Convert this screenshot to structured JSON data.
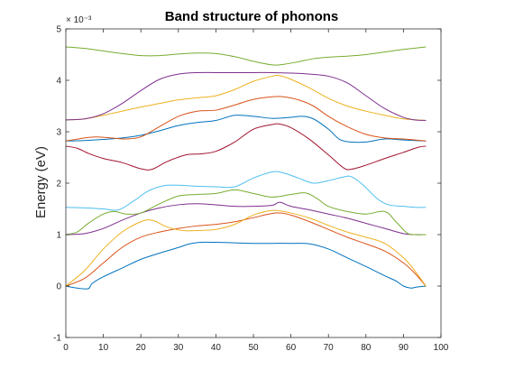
{
  "chart_data": {
    "type": "line",
    "title": "Band structure of phonons",
    "xlabel": "",
    "ylabel": "Energy (eV)",
    "y_multiplier_label": "× 10⁻³",
    "y_multiplier": 0.001,
    "xlim": [
      0,
      100
    ],
    "ylim": [
      -1,
      5
    ],
    "xticks": [
      0,
      10,
      20,
      30,
      40,
      50,
      60,
      70,
      80,
      90,
      100
    ],
    "yticks": [
      -1,
      0,
      1,
      2,
      3,
      4,
      5
    ],
    "grid": false,
    "legend": "none",
    "series": [
      {
        "color": "#0072BD",
        "points": [
          [
            0,
            0.0
          ],
          [
            3,
            -0.04
          ],
          [
            6,
            -0.05
          ],
          [
            7,
            0.05
          ],
          [
            10,
            0.18
          ],
          [
            15,
            0.35
          ],
          [
            20,
            0.52
          ],
          [
            25,
            0.64
          ],
          [
            30,
            0.75
          ],
          [
            33,
            0.82
          ],
          [
            36,
            0.85
          ],
          [
            40,
            0.85
          ],
          [
            45,
            0.84
          ],
          [
            50,
            0.83
          ],
          [
            55,
            0.83
          ],
          [
            60,
            0.83
          ],
          [
            65,
            0.82
          ],
          [
            70,
            0.72
          ],
          [
            75,
            0.55
          ],
          [
            80,
            0.38
          ],
          [
            85,
            0.2
          ],
          [
            88,
            0.1
          ],
          [
            90,
            0.0
          ],
          [
            92,
            -0.04
          ],
          [
            93.5,
            -0.02
          ],
          [
            96,
            0.0
          ]
        ]
      },
      {
        "color": "#D95319",
        "points": [
          [
            0,
            0.0
          ],
          [
            5,
            0.15
          ],
          [
            10,
            0.45
          ],
          [
            15,
            0.75
          ],
          [
            20,
            0.95
          ],
          [
            25,
            1.05
          ],
          [
            30,
            1.12
          ],
          [
            35,
            1.17
          ],
          [
            40,
            1.2
          ],
          [
            45,
            1.25
          ],
          [
            50,
            1.33
          ],
          [
            56,
            1.42
          ],
          [
            60,
            1.38
          ],
          [
            65,
            1.25
          ],
          [
            70,
            1.1
          ],
          [
            75,
            0.95
          ],
          [
            80,
            0.82
          ],
          [
            85,
            0.68
          ],
          [
            90,
            0.45
          ],
          [
            93,
            0.25
          ],
          [
            96,
            0.0
          ]
        ]
      },
      {
        "color": "#EDB120",
        "points": [
          [
            0,
            0.0
          ],
          [
            5,
            0.3
          ],
          [
            10,
            0.72
          ],
          [
            15,
            1.05
          ],
          [
            20,
            1.25
          ],
          [
            23,
            1.28
          ],
          [
            27,
            1.15
          ],
          [
            31,
            1.08
          ],
          [
            35,
            1.08
          ],
          [
            40,
            1.1
          ],
          [
            45,
            1.2
          ],
          [
            50,
            1.38
          ],
          [
            55,
            1.47
          ],
          [
            60,
            1.42
          ],
          [
            65,
            1.32
          ],
          [
            70,
            1.18
          ],
          [
            75,
            1.05
          ],
          [
            80,
            0.95
          ],
          [
            85,
            0.83
          ],
          [
            90,
            0.55
          ],
          [
            93,
            0.3
          ],
          [
            96,
            0.0
          ]
        ]
      },
      {
        "color": "#7E2F8E",
        "points": [
          [
            0,
            1.0
          ],
          [
            5,
            1.02
          ],
          [
            10,
            1.12
          ],
          [
            15,
            1.28
          ],
          [
            20,
            1.42
          ],
          [
            25,
            1.52
          ],
          [
            30,
            1.58
          ],
          [
            35,
            1.6
          ],
          [
            40,
            1.58
          ],
          [
            45,
            1.55
          ],
          [
            50,
            1.55
          ],
          [
            55,
            1.57
          ],
          [
            57,
            1.63
          ],
          [
            60,
            1.55
          ],
          [
            65,
            1.48
          ],
          [
            70,
            1.4
          ],
          [
            75,
            1.32
          ],
          [
            80,
            1.22
          ],
          [
            85,
            1.12
          ],
          [
            90,
            1.02
          ],
          [
            93,
            1.0
          ],
          [
            96,
            1.0
          ]
        ]
      },
      {
        "color": "#77AC30",
        "points": [
          [
            0,
            1.0
          ],
          [
            3,
            1.05
          ],
          [
            6,
            1.22
          ],
          [
            10,
            1.4
          ],
          [
            13,
            1.45
          ],
          [
            16,
            1.4
          ],
          [
            20,
            1.42
          ],
          [
            25,
            1.6
          ],
          [
            30,
            1.75
          ],
          [
            35,
            1.78
          ],
          [
            40,
            1.8
          ],
          [
            45,
            1.87
          ],
          [
            50,
            1.8
          ],
          [
            55,
            1.73
          ],
          [
            60,
            1.78
          ],
          [
            64,
            1.81
          ],
          [
            67,
            1.7
          ],
          [
            70,
            1.55
          ],
          [
            75,
            1.45
          ],
          [
            80,
            1.4
          ],
          [
            85,
            1.45
          ],
          [
            88,
            1.25
          ],
          [
            91,
            1.03
          ],
          [
            93,
            1.0
          ],
          [
            96,
            1.0
          ]
        ]
      },
      {
        "color": "#4DBEEE",
        "points": [
          [
            0,
            1.53
          ],
          [
            5,
            1.52
          ],
          [
            10,
            1.5
          ],
          [
            14,
            1.48
          ],
          [
            18,
            1.65
          ],
          [
            22,
            1.85
          ],
          [
            26,
            1.95
          ],
          [
            30,
            1.96
          ],
          [
            35,
            1.94
          ],
          [
            40,
            1.93
          ],
          [
            45,
            1.93
          ],
          [
            50,
            2.1
          ],
          [
            55,
            2.22
          ],
          [
            58,
            2.2
          ],
          [
            62,
            2.1
          ],
          [
            66,
            2.0
          ],
          [
            70,
            2.05
          ],
          [
            74,
            2.12
          ],
          [
            76,
            2.13
          ],
          [
            79,
            1.98
          ],
          [
            83,
            1.7
          ],
          [
            86,
            1.58
          ],
          [
            90,
            1.55
          ],
          [
            93,
            1.53
          ],
          [
            96,
            1.53
          ]
        ]
      },
      {
        "color": "#A2142F",
        "points": [
          [
            0,
            2.72
          ],
          [
            3,
            2.68
          ],
          [
            6,
            2.58
          ],
          [
            10,
            2.48
          ],
          [
            15,
            2.4
          ],
          [
            20,
            2.28
          ],
          [
            23,
            2.27
          ],
          [
            27,
            2.42
          ],
          [
            32,
            2.55
          ],
          [
            36,
            2.57
          ],
          [
            40,
            2.62
          ],
          [
            45,
            2.8
          ],
          [
            50,
            3.05
          ],
          [
            55,
            3.14
          ],
          [
            57,
            3.15
          ],
          [
            60,
            3.08
          ],
          [
            65,
            2.85
          ],
          [
            70,
            2.55
          ],
          [
            74,
            2.3
          ],
          [
            76,
            2.27
          ],
          [
            80,
            2.35
          ],
          [
            85,
            2.48
          ],
          [
            90,
            2.6
          ],
          [
            94,
            2.7
          ],
          [
            96,
            2.72
          ]
        ]
      },
      {
        "color": "#0072BD",
        "points": [
          [
            0,
            2.82
          ],
          [
            5,
            2.83
          ],
          [
            10,
            2.85
          ],
          [
            15,
            2.88
          ],
          [
            20,
            2.93
          ],
          [
            25,
            3.02
          ],
          [
            30,
            3.12
          ],
          [
            35,
            3.18
          ],
          [
            40,
            3.22
          ],
          [
            45,
            3.32
          ],
          [
            50,
            3.3
          ],
          [
            55,
            3.26
          ],
          [
            60,
            3.28
          ],
          [
            63,
            3.3
          ],
          [
            66,
            3.25
          ],
          [
            70,
            3.05
          ],
          [
            73,
            2.85
          ],
          [
            76,
            2.8
          ],
          [
            80,
            2.8
          ],
          [
            85,
            2.86
          ],
          [
            90,
            2.84
          ],
          [
            96,
            2.82
          ]
        ]
      },
      {
        "color": "#D95319",
        "points": [
          [
            0,
            2.82
          ],
          [
            5,
            2.88
          ],
          [
            8,
            2.9
          ],
          [
            12,
            2.88
          ],
          [
            16,
            2.86
          ],
          [
            20,
            2.9
          ],
          [
            25,
            3.1
          ],
          [
            30,
            3.3
          ],
          [
            35,
            3.4
          ],
          [
            40,
            3.42
          ],
          [
            45,
            3.52
          ],
          [
            50,
            3.63
          ],
          [
            55,
            3.68
          ],
          [
            58,
            3.68
          ],
          [
            62,
            3.62
          ],
          [
            66,
            3.5
          ],
          [
            70,
            3.3
          ],
          [
            75,
            3.1
          ],
          [
            80,
            2.95
          ],
          [
            85,
            2.88
          ],
          [
            90,
            2.86
          ],
          [
            96,
            2.82
          ]
        ]
      },
      {
        "color": "#EDB120",
        "points": [
          [
            0,
            3.23
          ],
          [
            5,
            3.25
          ],
          [
            10,
            3.32
          ],
          [
            15,
            3.4
          ],
          [
            20,
            3.48
          ],
          [
            25,
            3.55
          ],
          [
            30,
            3.62
          ],
          [
            35,
            3.66
          ],
          [
            40,
            3.7
          ],
          [
            45,
            3.82
          ],
          [
            50,
            3.98
          ],
          [
            55,
            4.08
          ],
          [
            57,
            4.09
          ],
          [
            60,
            4.02
          ],
          [
            65,
            3.85
          ],
          [
            70,
            3.65
          ],
          [
            75,
            3.5
          ],
          [
            80,
            3.4
          ],
          [
            85,
            3.32
          ],
          [
            90,
            3.25
          ],
          [
            96,
            3.22
          ]
        ]
      },
      {
        "color": "#7E2F8E",
        "points": [
          [
            0,
            3.23
          ],
          [
            5,
            3.25
          ],
          [
            10,
            3.35
          ],
          [
            15,
            3.55
          ],
          [
            20,
            3.8
          ],
          [
            25,
            4.02
          ],
          [
            30,
            4.12
          ],
          [
            35,
            4.15
          ],
          [
            40,
            4.15
          ],
          [
            45,
            4.15
          ],
          [
            50,
            4.15
          ],
          [
            55,
            4.15
          ],
          [
            60,
            4.14
          ],
          [
            65,
            4.12
          ],
          [
            70,
            4.08
          ],
          [
            75,
            3.95
          ],
          [
            80,
            3.7
          ],
          [
            85,
            3.45
          ],
          [
            90,
            3.28
          ],
          [
            93,
            3.23
          ],
          [
            96,
            3.22
          ]
        ]
      },
      {
        "color": "#77AC30",
        "points": [
          [
            0,
            4.65
          ],
          [
            5,
            4.62
          ],
          [
            10,
            4.57
          ],
          [
            15,
            4.52
          ],
          [
            20,
            4.48
          ],
          [
            25,
            4.48
          ],
          [
            30,
            4.51
          ],
          [
            35,
            4.53
          ],
          [
            40,
            4.52
          ],
          [
            45,
            4.46
          ],
          [
            50,
            4.37
          ],
          [
            55,
            4.3
          ],
          [
            58,
            4.31
          ],
          [
            62,
            4.36
          ],
          [
            66,
            4.42
          ],
          [
            70,
            4.45
          ],
          [
            75,
            4.47
          ],
          [
            80,
            4.5
          ],
          [
            85,
            4.55
          ],
          [
            90,
            4.6
          ],
          [
            96,
            4.65
          ]
        ]
      }
    ]
  }
}
